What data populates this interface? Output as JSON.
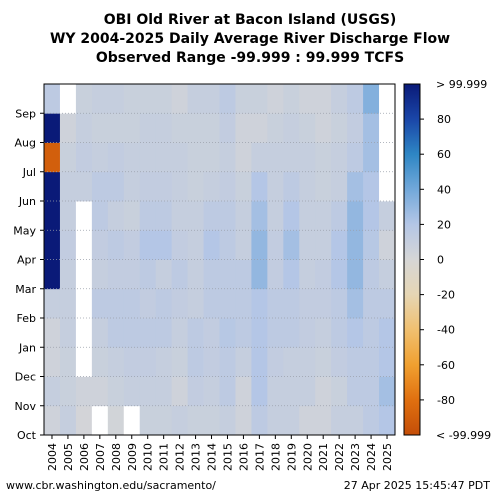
{
  "chart_data": {
    "type": "heatmap",
    "title_lines": [
      "OBI Old River at Bacon Island (USGS)",
      "WY 2004-2025 Daily Average River Discharge Flow",
      "Observed Range -99.999 : 99.999 TCFS"
    ],
    "x_categories": [
      "2004",
      "2005",
      "2006",
      "2007",
      "2008",
      "2009",
      "2010",
      "2011",
      "2012",
      "2013",
      "2014",
      "2015",
      "2016",
      "2017",
      "2018",
      "2019",
      "2020",
      "2021",
      "2022",
      "2023",
      "2024",
      "2025"
    ],
    "y_month_labels": [
      "Oct",
      "Nov",
      "Dec",
      "Jan",
      "Feb",
      "Mar",
      "Apr",
      "May",
      "Jun",
      "Jul",
      "Aug",
      "Sep"
    ],
    "colorbar": {
      "range": [
        -99.999,
        99.999
      ],
      "ticks": [
        80,
        60,
        40,
        20,
        0,
        -20,
        -40,
        -60,
        -80
      ],
      "top_label": "> 99.999",
      "bottom_label": "< -99.999",
      "stops": [
        {
          "v": 100,
          "c": "#0a1a78"
        },
        {
          "v": 80,
          "c": "#1a46a8"
        },
        {
          "v": 60,
          "c": "#2e86c4"
        },
        {
          "v": 40,
          "c": "#72a8da"
        },
        {
          "v": 20,
          "c": "#b4c6e6"
        },
        {
          "v": 0,
          "c": "#d6d6d6"
        },
        {
          "v": -20,
          "c": "#e6d6b4"
        },
        {
          "v": -40,
          "c": "#f0c070"
        },
        {
          "v": -60,
          "c": "#f0a030"
        },
        {
          "v": -80,
          "c": "#e07010"
        },
        {
          "v": -100,
          "c": "#c44e08"
        }
      ]
    },
    "approx_monthly_values": [
      [
        5,
        10,
        5,
        5,
        10,
        100,
        100,
        100,
        100,
        -90,
        100,
        15
      ],
      [
        10,
        8,
        8,
        10,
        10,
        10,
        12,
        10,
        10,
        8,
        5,
        null
      ],
      [
        2,
        5,
        null,
        null,
        null,
        null,
        null,
        null,
        10,
        12,
        10,
        8
      ],
      [
        null,
        5,
        8,
        10,
        15,
        10,
        12,
        15,
        15,
        10,
        8,
        10
      ],
      [
        3,
        8,
        10,
        15,
        15,
        12,
        15,
        10,
        15,
        12,
        8,
        10
      ],
      [
        null,
        10,
        12,
        15,
        15,
        12,
        12,
        8,
        10,
        10,
        8,
        8
      ],
      [
        8,
        10,
        12,
        15,
        12,
        15,
        20,
        15,
        12,
        10,
        10,
        8
      ],
      [
        8,
        10,
        10,
        15,
        15,
        10,
        20,
        15,
        12,
        10,
        10,
        8
      ],
      [
        10,
        5,
        8,
        10,
        12,
        15,
        12,
        10,
        10,
        10,
        8,
        5
      ],
      [
        8,
        12,
        15,
        15,
        10,
        10,
        10,
        10,
        8,
        8,
        8,
        10
      ],
      [
        8,
        10,
        12,
        12,
        15,
        15,
        20,
        15,
        10,
        8,
        8,
        10
      ],
      [
        10,
        15,
        15,
        18,
        15,
        15,
        15,
        15,
        12,
        10,
        12,
        15
      ],
      [
        5,
        5,
        10,
        15,
        15,
        15,
        10,
        10,
        8,
        5,
        5,
        8
      ],
      [
        15,
        20,
        20,
        20,
        20,
        30,
        30,
        25,
        20,
        10,
        5,
        8
      ],
      [
        10,
        10,
        12,
        15,
        15,
        12,
        12,
        10,
        10,
        10,
        8,
        5
      ],
      [
        10,
        10,
        10,
        15,
        15,
        20,
        25,
        20,
        15,
        10,
        10,
        8
      ],
      [
        5,
        10,
        10,
        12,
        12,
        10,
        10,
        10,
        10,
        10,
        8,
        5
      ],
      [
        5,
        5,
        8,
        10,
        12,
        12,
        10,
        10,
        8,
        8,
        5,
        5
      ],
      [
        10,
        8,
        12,
        15,
        15,
        20,
        20,
        15,
        10,
        10,
        8,
        10
      ],
      [
        10,
        15,
        15,
        20,
        25,
        30,
        30,
        30,
        25,
        15,
        12,
        15
      ],
      [
        15,
        15,
        15,
        15,
        15,
        15,
        18,
        20,
        20,
        25,
        25,
        35
      ],
      [
        20,
        25,
        20,
        20,
        15,
        10,
        5,
        10,
        null,
        null,
        null,
        null
      ]
    ]
  },
  "footer": {
    "url": "www.cbr.washington.edu/sacramento/",
    "timestamp": "27 Apr 2025 15:45:47 PDT"
  }
}
